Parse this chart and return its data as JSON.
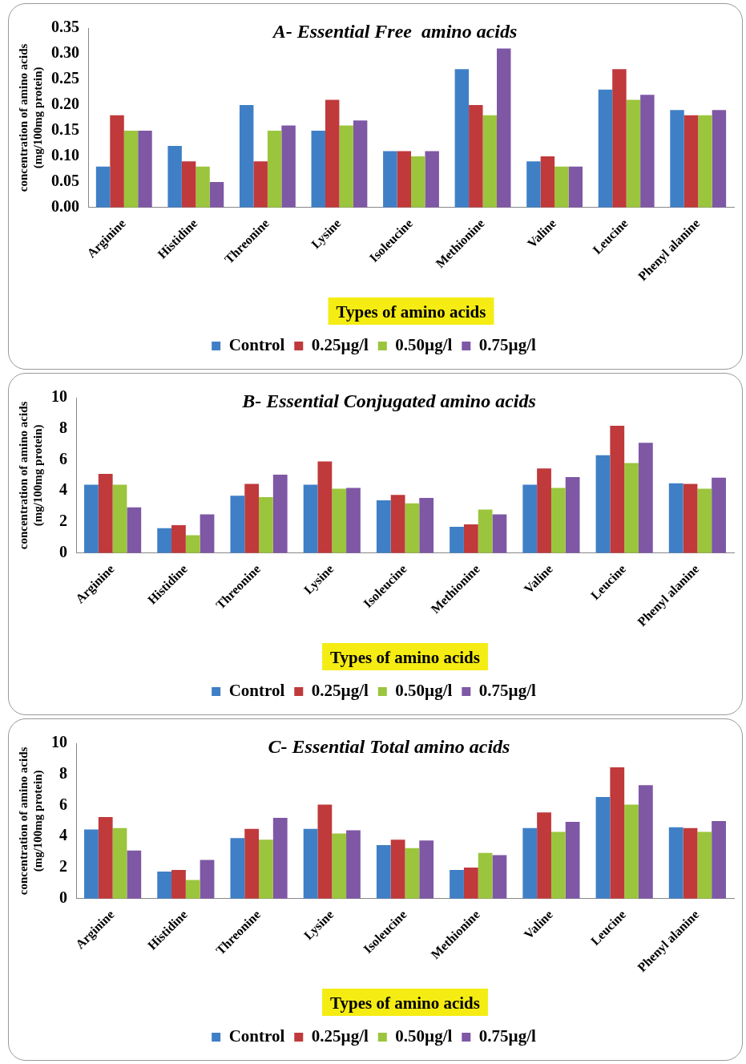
{
  "chart_data": [
    {
      "type": "bar",
      "title": "A- Essential Free  amino acids",
      "xlabel": "Types of amino acids",
      "ylabel": "concentration of amino acids\n(mg/100mg protein)",
      "legend": "bottom",
      "categories": [
        "Arginine",
        "Histidine",
        "Threonine",
        "Lysine",
        "Isoleucine",
        "Methionine",
        "Valine",
        "Leucine",
        "Phenyl alanine"
      ],
      "ylim": [
        0,
        0.35
      ],
      "yticks": [
        {
          "value": 0,
          "label": "0.00"
        },
        {
          "value": 0.05,
          "label": "0.05"
        },
        {
          "value": 0.1,
          "label": "0.10"
        },
        {
          "value": 0.15,
          "label": "0.15"
        },
        {
          "value": 0.2,
          "label": "0.20"
        },
        {
          "value": 0.25,
          "label": "0.25"
        },
        {
          "value": 0.3,
          "label": "0.30"
        },
        {
          "value": 0.35,
          "label": "0.35"
        }
      ],
      "series": [
        {
          "name": "Control",
          "color": "#3f7fc6",
          "values": [
            0.08,
            0.12,
            0.2,
            0.15,
            0.11,
            0.27,
            0.09,
            0.23,
            0.19
          ]
        },
        {
          "name": "0.25µg/l",
          "color": "#c0393b",
          "values": [
            0.18,
            0.09,
            0.09,
            0.21,
            0.11,
            0.2,
            0.1,
            0.27,
            0.18
          ]
        },
        {
          "name": "0.50µg/l",
          "color": "#9bc53d",
          "values": [
            0.15,
            0.08,
            0.15,
            0.16,
            0.1,
            0.18,
            0.08,
            0.21,
            0.18
          ]
        },
        {
          "name": "0.75µg/l",
          "color": "#7e57a5",
          "values": [
            0.15,
            0.05,
            0.16,
            0.17,
            0.11,
            0.31,
            0.08,
            0.22,
            0.19
          ]
        }
      ]
    },
    {
      "type": "bar",
      "title": "B- Essential Conjugated amino acids",
      "xlabel": "Types of amino acids",
      "ylabel": "concentration of amino acids\n(mg/100mg protein)",
      "legend": "bottom",
      "categories": [
        "Arginine",
        "Histidine",
        "Threonine",
        "Lysine",
        "Isoleucine",
        "Methionine",
        "Valine",
        "Leucine",
        "Phenyl alanine"
      ],
      "ylim": [
        0,
        10
      ],
      "yticks": [
        0,
        2,
        4,
        6,
        8,
        10
      ],
      "series": [
        {
          "name": "Control",
          "color": "#3f7fc6",
          "values": [
            4.4,
            1.6,
            3.7,
            4.4,
            3.4,
            1.7,
            4.4,
            6.3,
            4.5
          ]
        },
        {
          "name": "0.25µg/l",
          "color": "#c0393b",
          "values": [
            5.1,
            1.8,
            4.45,
            5.9,
            3.75,
            1.85,
            5.45,
            8.2,
            4.45
          ]
        },
        {
          "name": "0.50µg/l",
          "color": "#9bc53d",
          "values": [
            4.4,
            1.15,
            3.6,
            4.15,
            3.2,
            2.8,
            4.2,
            5.8,
            4.15
          ]
        },
        {
          "name": "0.75µg/l",
          "color": "#7e57a5",
          "values": [
            2.95,
            2.5,
            5.05,
            4.2,
            3.55,
            2.5,
            4.9,
            7.1,
            4.85
          ]
        }
      ]
    },
    {
      "type": "bar",
      "title": "C- Essential Total amino acids",
      "xlabel": "Types of amino acids",
      "ylabel": "concentration of amino acids\n(mg/100mg protein)",
      "legend": "bottom",
      "categories": [
        "Arginine",
        "Histidine",
        "Threonine",
        "Lysine",
        "Isoleucine",
        "Methionine",
        "Valine",
        "Leucine",
        "Phenyl alanine"
      ],
      "ylim": [
        0,
        10
      ],
      "yticks": [
        0,
        2,
        4,
        6,
        8,
        10
      ],
      "series": [
        {
          "name": "Control",
          "color": "#3f7fc6",
          "values": [
            4.45,
            1.75,
            3.9,
            4.5,
            3.45,
            1.85,
            4.55,
            6.55,
            4.6
          ]
        },
        {
          "name": "0.25µg/l",
          "color": "#c0393b",
          "values": [
            5.25,
            1.85,
            4.5,
            6.05,
            3.8,
            2.0,
            5.55,
            8.45,
            4.55
          ]
        },
        {
          "name": "0.50µg/l",
          "color": "#9bc53d",
          "values": [
            4.55,
            1.2,
            3.8,
            4.2,
            3.25,
            2.95,
            4.3,
            6.05,
            4.3
          ]
        },
        {
          "name": "0.75µg/l",
          "color": "#7e57a5",
          "values": [
            3.1,
            2.5,
            5.2,
            4.4,
            3.75,
            2.8,
            4.95,
            7.3,
            5.0
          ]
        }
      ]
    }
  ]
}
